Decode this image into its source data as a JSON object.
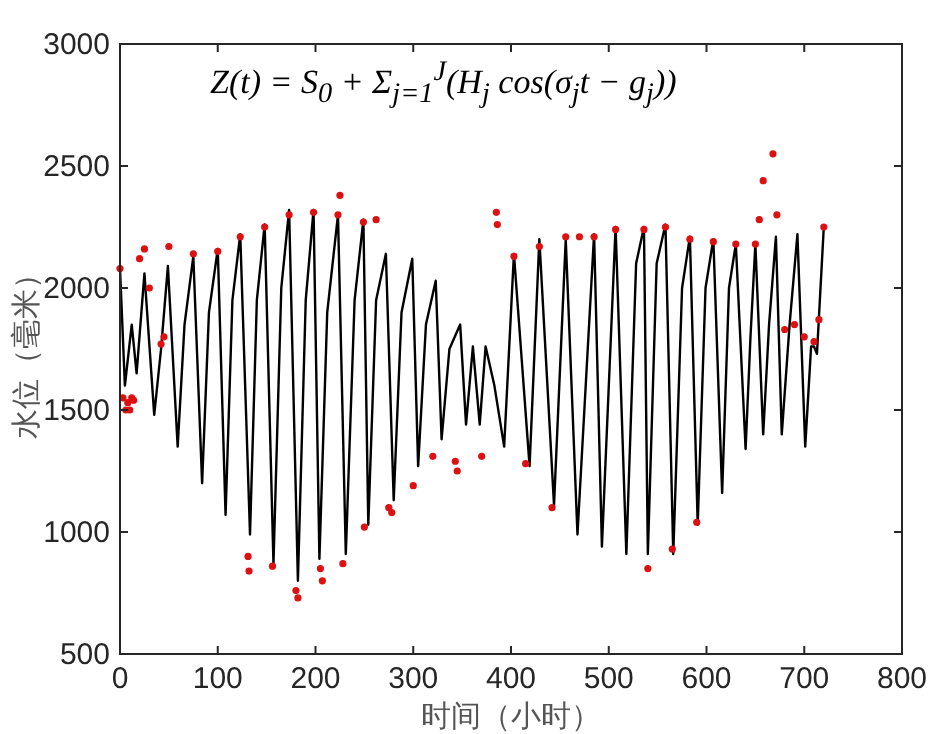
{
  "chart_data": {
    "type": "line",
    "xlabel": "时间（小时）",
    "ylabel": "水位（毫米）",
    "annotations": [
      "Z(t) = S$_{0}$ + Σ$_{j=1}$$^{J}$(H$_{j}$ cos(σ$_{j}$t − g$_{j}$))"
    ],
    "xlim": [
      0,
      800
    ],
    "ylim": [
      500,
      3000
    ],
    "xticks": [
      0,
      100,
      200,
      300,
      400,
      500,
      600,
      700,
      800
    ],
    "yticks": [
      500,
      1000,
      1500,
      2000,
      2500,
      3000
    ],
    "grid": false,
    "series": [
      {
        "color": "#000000",
        "x": [
          0,
          5,
          12,
          17,
          25,
          35,
          42,
          49,
          59,
          66,
          75,
          84,
          91,
          100,
          108,
          115,
          123,
          133,
          140,
          148,
          157,
          165,
          173,
          182,
          190,
          198,
          204,
          212,
          223,
          231,
          240,
          249,
          254,
          262,
          272,
          280,
          288,
          299,
          305,
          313,
          323,
          329,
          337,
          348,
          354,
          361,
          368,
          374,
          383,
          393,
          403,
          419,
          429,
          444,
          456,
          468,
          485,
          493,
          507,
          518,
          528,
          536,
          540,
          549,
          558,
          566,
          575,
          583,
          591,
          599,
          607,
          616,
          623,
          630,
          640,
          645,
          650,
          658,
          664,
          671,
          677,
          685,
          693,
          701,
          707,
          710,
          713,
          720
        ],
        "values": [
          2080,
          1600,
          1850,
          1650,
          2060,
          1480,
          1750,
          2090,
          1350,
          1850,
          2130,
          1200,
          1900,
          2160,
          1070,
          1950,
          2220,
          990,
          1950,
          2260,
          870,
          2000,
          2320,
          800,
          1950,
          2320,
          890,
          1900,
          2300,
          910,
          1950,
          2280,
          1030,
          1950,
          2140,
          1130,
          1900,
          2120,
          1270,
          1850,
          2030,
          1380,
          1750,
          1850,
          1440,
          1760,
          1440,
          1760,
          1600,
          1350,
          2140,
          1270,
          2200,
          1110,
          2200,
          990,
          2220,
          940,
          2250,
          910,
          2100,
          2250,
          910,
          2100,
          2260,
          910,
          2000,
          2210,
          1030,
          2000,
          2200,
          1160,
          2000,
          2180,
          1340,
          1800,
          2180,
          1400,
          1850,
          2210,
          1400,
          1850,
          2220,
          1350,
          1760,
          1760,
          1730,
          2250
        ]
      },
      {
        "type": "scatter",
        "color": "#dd1111",
        "x": [
          0,
          3,
          6,
          8,
          10,
          12,
          14,
          20,
          25,
          30,
          42,
          45,
          50,
          75,
          100,
          123,
          131,
          132,
          148,
          156,
          173,
          180,
          182,
          198,
          205,
          207,
          223,
          225,
          228,
          249,
          250,
          262,
          275,
          278,
          300,
          320,
          343,
          345,
          370,
          385,
          386,
          403,
          415,
          429,
          442,
          456,
          470,
          485,
          507,
          536,
          540,
          558,
          565,
          583,
          590,
          607,
          630,
          650,
          654,
          658,
          668,
          672,
          680,
          690,
          700,
          710,
          715,
          720
        ],
        "values": [
          2080,
          1550,
          1500,
          1530,
          1500,
          1550,
          1540,
          2120,
          2160,
          2000,
          1770,
          1800,
          2170,
          2140,
          2150,
          2210,
          900,
          840,
          2250,
          860,
          2300,
          760,
          730,
          2310,
          850,
          800,
          2300,
          2380,
          870,
          2270,
          1020,
          2280,
          1100,
          1080,
          1190,
          1310,
          1290,
          1250,
          1310,
          2310,
          2260,
          2130,
          1280,
          2170,
          1100,
          2210,
          2210,
          2210,
          2240,
          2240,
          850,
          2250,
          930,
          2200,
          1040,
          2190,
          2180,
          2180,
          2280,
          2440,
          2550,
          2300,
          1830,
          1850,
          1800,
          1780,
          1870,
          2250
        ]
      }
    ]
  }
}
